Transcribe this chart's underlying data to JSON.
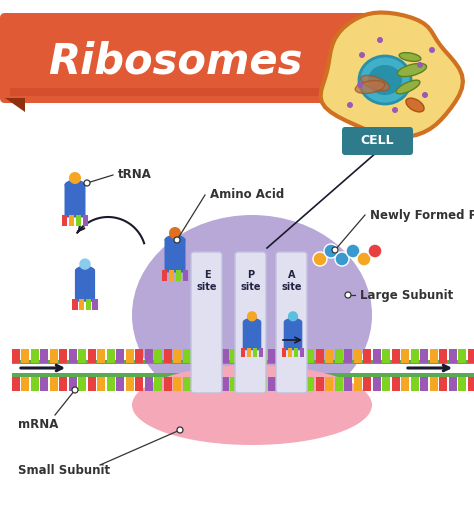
{
  "title": "Ribosomes",
  "title_color": "#ffffff",
  "title_bg_color": "#E05A35",
  "title_bg_dark": "#C84020",
  "bg_color": "#ffffff",
  "large_subunit_color": "#B8A8D8",
  "small_subunit_color": "#F5A8B8",
  "mrna_colors": [
    "#E84040",
    "#F5A623",
    "#7ED321",
    "#9B59B6",
    "#F5A623",
    "#E84040",
    "#9B59B6",
    "#7ED321"
  ],
  "mrna_backbone_color": "#5AAA50",
  "cell_outer_color": "#F5D77A",
  "cell_border_color": "#D07020",
  "cell_nucleus_color": "#40B0C8",
  "cell_nucleus_dark": "#2890A8",
  "cell_label_bg": "#2E7B8C",
  "trna_body_color": "#3A6BC8",
  "trna_arm_colors": [
    "#E84040",
    "#F5A623",
    "#7ED321",
    "#9B59B6"
  ],
  "protein_colors": [
    "#F5A623",
    "#3A9AD0",
    "#3A9AD0",
    "#3A9AD0",
    "#F5A623",
    "#E84040"
  ],
  "slot_color": "#E0E0F0",
  "slot_border": "#C0C0E0",
  "arrow_color": "#1A1A2E",
  "label_color": "#333333",
  "labels": {
    "trna": "tRNA",
    "amino_acid": "Amino Acid",
    "newly_formed_protein": "Newly Formed Protein",
    "large_subunit": "Large Subunit",
    "small_subunit": "Small Subunit",
    "mrna": "mRNA",
    "cell": "CELL",
    "e_site": "E\nsite",
    "p_site": "P\nsite",
    "a_site": "A\nsite"
  }
}
